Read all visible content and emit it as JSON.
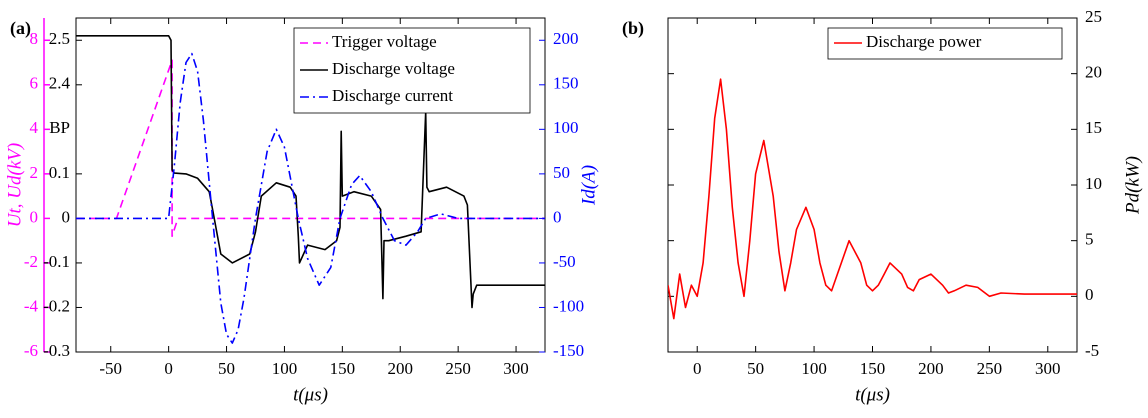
{
  "chart_data": [
    {
      "type": "line",
      "panel_label": "(a)",
      "xlabel": "t(μs)",
      "ylabel": "Ut, Ud(kV)",
      "y2label": "Id(A)",
      "xlim": [
        -80,
        325
      ],
      "xticks": [
        -50,
        0,
        50,
        100,
        150,
        200,
        250,
        300
      ],
      "ylim": [
        -6,
        9
      ],
      "yticks": [
        -6,
        -4,
        -2,
        0,
        2,
        4,
        6,
        8
      ],
      "y_color": "#ff00ff",
      "y2lim": [
        -150,
        225
      ],
      "y2ticks": [
        -150,
        -100,
        -50,
        0,
        50,
        100,
        150,
        200
      ],
      "y2_color": "#0000ff",
      "y3ticks": [
        -0.3,
        -0.2,
        -0.1,
        0,
        0.1,
        {
          "label": "BP"
        },
        2.4,
        2.5
      ],
      "legend": "upper right",
      "series": [
        {
          "name": "Trigger voltage",
          "color": "#ff00ff",
          "linestyle": "dashed",
          "axis": "y",
          "x": [
            -80,
            -45,
            3,
            3,
            8,
            325
          ],
          "values": [
            0,
            0,
            7.1,
            -0.8,
            0,
            0
          ]
        },
        {
          "name": "Discharge voltage",
          "color": "#000000",
          "linestyle": "solid",
          "axis": "y3",
          "x": [
            -80,
            -40,
            0,
            2,
            3,
            5,
            15,
            25,
            35,
            38,
            45,
            55,
            70,
            75,
            80,
            93,
            105,
            110,
            112,
            113,
            120,
            135,
            145,
            148,
            149,
            150,
            160,
            175,
            183,
            185,
            186,
            190,
            205,
            218,
            222,
            223,
            225,
            240,
            255,
            258,
            262,
            263,
            266,
            280,
            300,
            325
          ],
          "values": [
            2.51,
            2.51,
            2.51,
            2.5,
            0.2,
            0.12,
            0.1,
            0.09,
            0.06,
            0.02,
            -0.08,
            -0.1,
            -0.08,
            -0.03,
            0.05,
            0.08,
            0.07,
            0.05,
            -0.04,
            -0.1,
            -0.06,
            -0.07,
            -0.05,
            -0.02,
            1.2,
            0.05,
            0.06,
            0.05,
            0.02,
            -0.18,
            -0.05,
            -0.05,
            -0.04,
            -0.03,
            1.7,
            0.07,
            0.06,
            0.07,
            0.05,
            0.03,
            -0.2,
            -0.17,
            -0.15,
            -0.15,
            -0.15,
            -0.15
          ]
        },
        {
          "name": "Discharge current",
          "color": "#0000ff",
          "linestyle": "dashdot",
          "axis": "y2",
          "x": [
            -80,
            0,
            5,
            10,
            15,
            20,
            25,
            30,
            38,
            45,
            50,
            55,
            60,
            65,
            75,
            85,
            93,
            100,
            112,
            120,
            130,
            140,
            148,
            158,
            165,
            175,
            185,
            195,
            205,
            215,
            222,
            235,
            250,
            270,
            300,
            325
          ],
          "values": [
            0,
            0,
            60,
            130,
            175,
            185,
            165,
            110,
            0,
            -95,
            -130,
            -140,
            -125,
            -90,
            0,
            75,
            100,
            80,
            0,
            -45,
            -75,
            -55,
            0,
            38,
            48,
            30,
            0,
            -25,
            -30,
            -15,
            0,
            5,
            0,
            0,
            0,
            0
          ]
        }
      ]
    },
    {
      "type": "line",
      "panel_label": "(b)",
      "xlabel": "t(μs)",
      "ylabel": "Pd(kW)",
      "xlim": [
        -25,
        325
      ],
      "xticks": [
        0,
        50,
        100,
        150,
        200,
        250,
        300
      ],
      "ylim": [
        -5,
        25
      ],
      "yticks": [
        -5,
        0,
        5,
        10,
        15,
        20,
        25
      ],
      "y_color": "#000000",
      "y_side": "right",
      "legend": "upper right",
      "series": [
        {
          "name": "Discharge power",
          "color": "#ff0000",
          "linestyle": "solid",
          "axis": "y",
          "x": [
            -25,
            -20,
            -15,
            -10,
            -5,
            0,
            5,
            10,
            15,
            20,
            25,
            30,
            35,
            40,
            45,
            50,
            57,
            65,
            70,
            75,
            80,
            85,
            93,
            100,
            105,
            110,
            115,
            120,
            130,
            140,
            145,
            150,
            155,
            160,
            165,
            175,
            180,
            185,
            190,
            200,
            210,
            215,
            220,
            230,
            240,
            250,
            260,
            280,
            300,
            325
          ],
          "values": [
            1,
            -2,
            2,
            -1,
            1,
            0,
            3,
            9,
            16,
            19.5,
            15,
            8,
            3,
            0,
            5,
            11,
            14,
            9,
            4,
            0.5,
            3,
            6,
            8,
            6,
            3,
            1,
            0.5,
            2,
            5,
            3,
            1,
            0.5,
            1,
            2,
            3,
            2,
            0.8,
            0.5,
            1.5,
            2,
            1,
            0.3,
            0.5,
            1,
            0.8,
            0,
            0.3,
            0.2,
            0.2,
            0.2
          ]
        }
      ]
    }
  ]
}
